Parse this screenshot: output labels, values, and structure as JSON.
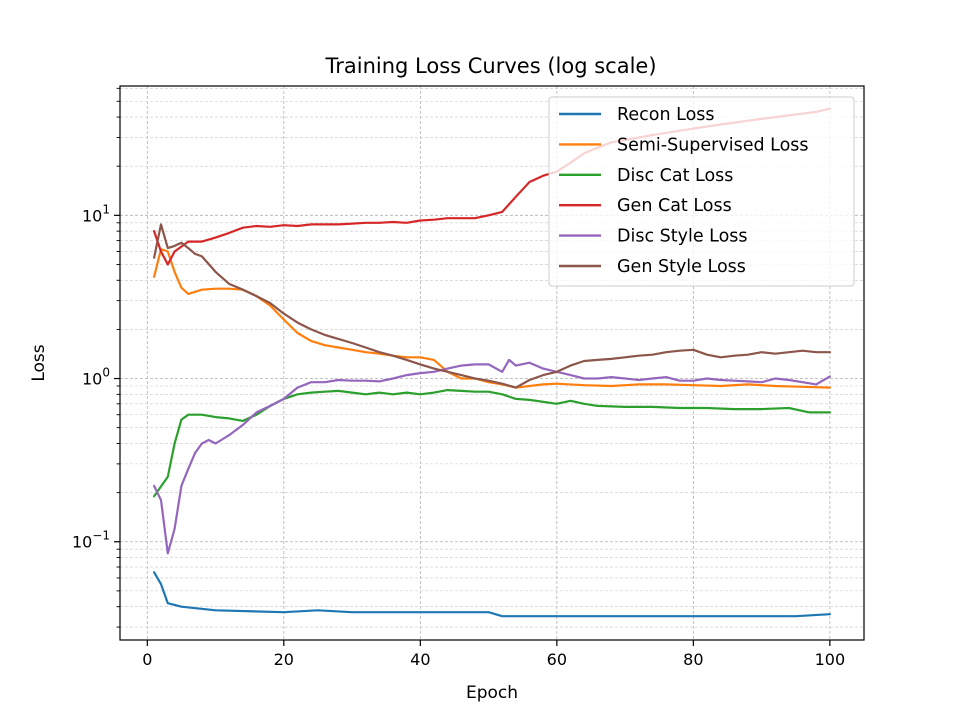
{
  "chart_data": {
    "type": "line",
    "title": "Training Loss Curves (log scale)",
    "xlabel": "Epoch",
    "ylabel": "Loss",
    "xlim": [
      -4,
      105
    ],
    "ylim": [
      0.025,
      62
    ],
    "yscale": "log",
    "grid": true,
    "legend_position": "top-right",
    "x_ticks": [
      0,
      20,
      40,
      60,
      80,
      100
    ],
    "y_ticks": [
      {
        "value": 0.1,
        "base": "10",
        "exp": "−1"
      },
      {
        "value": 1,
        "base": "10",
        "exp": "0"
      },
      {
        "value": 10,
        "base": "10",
        "exp": "1"
      }
    ],
    "series": [
      {
        "name": "Recon Loss",
        "color": "#1f77b4",
        "x": [
          1,
          2,
          3,
          5,
          10,
          20,
          25,
          30,
          40,
          50,
          52,
          55,
          60,
          70,
          80,
          90,
          95,
          100
        ],
        "y": [
          0.065,
          0.055,
          0.042,
          0.04,
          0.038,
          0.037,
          0.038,
          0.037,
          0.037,
          0.037,
          0.035,
          0.035,
          0.035,
          0.035,
          0.035,
          0.035,
          0.035,
          0.036
        ]
      },
      {
        "name": "Semi-Supervised Loss",
        "color": "#ff7f0e",
        "x": [
          1,
          2,
          3,
          4,
          5,
          6,
          7,
          8,
          10,
          12,
          14,
          16,
          18,
          20,
          22,
          24,
          26,
          28,
          30,
          32,
          34,
          36,
          38,
          40,
          42,
          44,
          46,
          48,
          50,
          52,
          54,
          56,
          58,
          60,
          64,
          68,
          72,
          76,
          80,
          84,
          88,
          92,
          96,
          100
        ],
        "y": [
          4.2,
          6.2,
          6.0,
          4.5,
          3.6,
          3.3,
          3.4,
          3.5,
          3.55,
          3.55,
          3.5,
          3.2,
          2.8,
          2.3,
          1.9,
          1.7,
          1.6,
          1.55,
          1.5,
          1.45,
          1.42,
          1.38,
          1.35,
          1.35,
          1.3,
          1.1,
          1.0,
          1.0,
          0.95,
          0.92,
          0.88,
          0.9,
          0.92,
          0.93,
          0.91,
          0.9,
          0.92,
          0.92,
          0.91,
          0.9,
          0.92,
          0.9,
          0.89,
          0.88
        ]
      },
      {
        "name": "Disc Cat Loss",
        "color": "#2ca02c",
        "x": [
          1,
          3,
          4,
          5,
          6,
          8,
          10,
          12,
          14,
          16,
          18,
          20,
          22,
          24,
          26,
          28,
          30,
          32,
          34,
          36,
          38,
          40,
          42,
          44,
          46,
          48,
          50,
          52,
          54,
          56,
          60,
          62,
          64,
          66,
          70,
          74,
          78,
          82,
          86,
          90,
          94,
          97,
          100
        ],
        "y": [
          0.19,
          0.25,
          0.4,
          0.56,
          0.6,
          0.6,
          0.58,
          0.57,
          0.55,
          0.6,
          0.68,
          0.75,
          0.8,
          0.82,
          0.83,
          0.84,
          0.82,
          0.8,
          0.82,
          0.8,
          0.82,
          0.8,
          0.82,
          0.85,
          0.84,
          0.83,
          0.83,
          0.8,
          0.75,
          0.74,
          0.7,
          0.73,
          0.7,
          0.68,
          0.67,
          0.67,
          0.66,
          0.66,
          0.65,
          0.65,
          0.66,
          0.62,
          0.62
        ]
      },
      {
        "name": "Gen Cat Loss",
        "color": "#d62728",
        "x": [
          1,
          2,
          3,
          4,
          6,
          8,
          10,
          12,
          14,
          16,
          18,
          20,
          22,
          24,
          26,
          28,
          30,
          32,
          34,
          36,
          38,
          40,
          42,
          44,
          46,
          48,
          50,
          52,
          54,
          56,
          58,
          60,
          62,
          64,
          66,
          68,
          70,
          72,
          74,
          76,
          78,
          80,
          82,
          84,
          86,
          88,
          90,
          92,
          94,
          96,
          98,
          100
        ],
        "y": [
          8.0,
          6.0,
          5.0,
          6.0,
          6.9,
          6.9,
          7.3,
          7.8,
          8.4,
          8.6,
          8.5,
          8.7,
          8.6,
          8.8,
          8.8,
          8.8,
          8.9,
          9.0,
          9.0,
          9.1,
          9.0,
          9.3,
          9.4,
          9.6,
          9.6,
          9.6,
          10.0,
          10.5,
          13.0,
          16.0,
          17.5,
          18.5,
          21.0,
          24.0,
          26.0,
          28.0,
          29.0,
          30.0,
          31.0,
          32.0,
          33.0,
          34.0,
          35.0,
          36.0,
          37.0,
          38.0,
          39.0,
          40.0,
          41.0,
          42.0,
          43.0,
          45.0
        ]
      },
      {
        "name": "Disc Style Loss",
        "color": "#9467bd",
        "x": [
          1,
          2,
          3,
          4,
          5,
          6,
          7,
          8,
          9,
          10,
          12,
          14,
          16,
          18,
          20,
          22,
          24,
          26,
          28,
          30,
          32,
          34,
          36,
          38,
          40,
          42,
          44,
          46,
          48,
          50,
          52,
          53,
          54,
          56,
          58,
          60,
          62,
          64,
          66,
          68,
          70,
          72,
          74,
          76,
          78,
          80,
          82,
          84,
          86,
          88,
          90,
          92,
          94,
          96,
          98,
          100
        ],
        "y": [
          0.22,
          0.18,
          0.085,
          0.12,
          0.22,
          0.28,
          0.35,
          0.4,
          0.42,
          0.4,
          0.45,
          0.52,
          0.62,
          0.68,
          0.75,
          0.88,
          0.95,
          0.95,
          0.98,
          0.97,
          0.97,
          0.96,
          1.0,
          1.05,
          1.08,
          1.1,
          1.15,
          1.2,
          1.22,
          1.22,
          1.1,
          1.3,
          1.2,
          1.25,
          1.15,
          1.1,
          1.05,
          1.0,
          1.0,
          1.02,
          1.0,
          0.98,
          1.0,
          1.02,
          0.97,
          0.97,
          1.0,
          0.98,
          0.97,
          0.96,
          0.95,
          1.0,
          0.98,
          0.95,
          0.92,
          1.03
        ]
      },
      {
        "name": "Gen Style Loss",
        "color": "#8c564b",
        "x": [
          1,
          2,
          3,
          4,
          5,
          6,
          7,
          8,
          10,
          12,
          14,
          16,
          18,
          20,
          22,
          24,
          26,
          28,
          30,
          32,
          34,
          36,
          38,
          40,
          42,
          44,
          46,
          48,
          50,
          52,
          54,
          56,
          58,
          60,
          62,
          64,
          66,
          68,
          70,
          72,
          74,
          76,
          78,
          80,
          82,
          84,
          86,
          88,
          90,
          92,
          94,
          96,
          98,
          100
        ],
        "y": [
          5.5,
          8.8,
          6.3,
          6.5,
          6.8,
          6.3,
          5.8,
          5.6,
          4.5,
          3.8,
          3.5,
          3.2,
          2.9,
          2.5,
          2.2,
          2.0,
          1.85,
          1.75,
          1.65,
          1.55,
          1.45,
          1.38,
          1.3,
          1.22,
          1.15,
          1.1,
          1.05,
          1.0,
          0.97,
          0.93,
          0.88,
          0.98,
          1.05,
          1.1,
          1.2,
          1.28,
          1.3,
          1.32,
          1.35,
          1.38,
          1.4,
          1.45,
          1.48,
          1.5,
          1.4,
          1.35,
          1.38,
          1.4,
          1.45,
          1.42,
          1.45,
          1.48,
          1.45,
          1.45
        ]
      }
    ]
  }
}
